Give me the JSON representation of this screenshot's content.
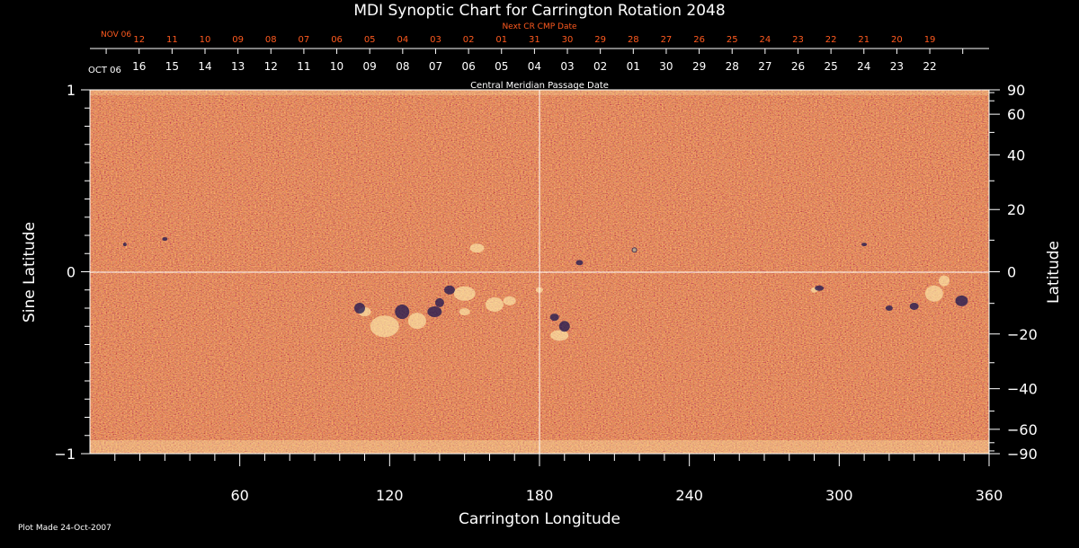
{
  "chart_data": {
    "type": "heatmap",
    "title": "MDI Synoptic Chart for Carrington Rotation 2048",
    "xlabel": "Carrington Longitude",
    "ylabel_left": "Sine Latitude",
    "ylabel_right": "Latitude",
    "top_axis_title": "Central Meridian Passage Date",
    "next_cr_title": "Next CR CMP Date",
    "footer": "Plot Made 24-Oct-2007",
    "xlim": [
      0,
      360
    ],
    "ylim": [
      -1,
      1
    ],
    "x_ticks": [
      60,
      120,
      180,
      240,
      300,
      360
    ],
    "x_tick_labels": [
      "60",
      "120",
      "180",
      "240",
      "300",
      "360"
    ],
    "y_ticks_left": [
      1,
      0,
      -1
    ],
    "y_tick_labels_left": [
      "1",
      "0",
      "−1"
    ],
    "y_ticks_right_deg": [
      90,
      60,
      40,
      20,
      0,
      -20,
      -40,
      -60,
      -90
    ],
    "y_tick_labels_right": [
      "90",
      "60",
      "40",
      "20",
      "0",
      "−20",
      "−40",
      "−60",
      "−90"
    ],
    "cmp_month_label": "OCT 06",
    "cmp_dates": [
      "16",
      "15",
      "14",
      "13",
      "12",
      "11",
      "10",
      "09",
      "08",
      "07",
      "06",
      "05",
      "04",
      "03",
      "02",
      "01",
      "30",
      "29",
      "28",
      "27",
      "26",
      "25",
      "24",
      "23",
      "22"
    ],
    "next_cr_month_label": "NOV 06",
    "next_cr_dates": [
      "12",
      "11",
      "10",
      "09",
      "08",
      "07",
      "06",
      "05",
      "04",
      "03",
      "02",
      "01",
      "31",
      "30",
      "29",
      "28",
      "27",
      "26",
      "25",
      "24",
      "23",
      "22",
      "21",
      "20",
      "19"
    ],
    "grid_lines": {
      "longitude": 180,
      "sine_latitude": 0
    },
    "colors": {
      "field_base": "#e8501a",
      "positive_polarity": "#fff2b0",
      "negative_polarity": "#1a1450",
      "grid": "#ffffff",
      "next_cr_text": "#ff5a1f"
    }
  }
}
